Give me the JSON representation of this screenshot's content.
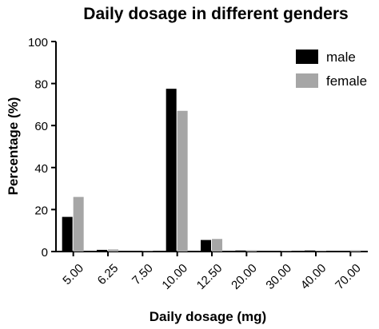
{
  "chart_data": {
    "type": "bar",
    "title": "Daily dosage in different genders",
    "xlabel": "Daily dosage (mg)",
    "ylabel": "Percentage (%)",
    "ylim": [
      0,
      100
    ],
    "yticks": [
      "0",
      "20",
      "40",
      "60",
      "80",
      "100"
    ],
    "categories": [
      "5.00",
      "6.25",
      "7.50",
      "10.00",
      "12.50",
      "20.00",
      "30.00",
      "40.00",
      "70.00"
    ],
    "series": [
      {
        "name": "male",
        "color": "#000000",
        "values": [
          16.5,
          0.8,
          0.2,
          77.5,
          5.5,
          0.5,
          0.2,
          0.5,
          0.2
        ]
      },
      {
        "name": "female",
        "color": "#a6a6a6",
        "values": [
          26,
          1,
          0.2,
          67,
          6,
          0.6,
          0.2,
          0.2,
          0.6
        ]
      }
    ],
    "legend_position": "top-right",
    "grid": false
  }
}
